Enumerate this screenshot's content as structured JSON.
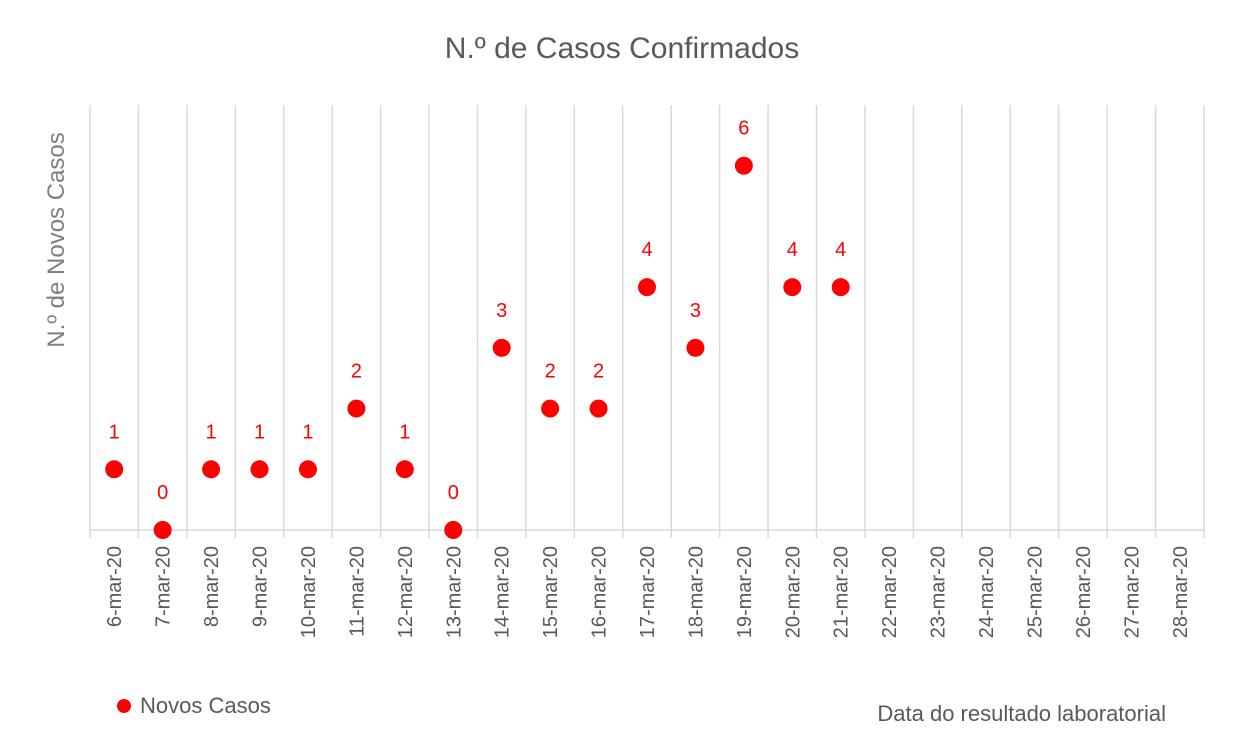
{
  "chart_data": {
    "type": "scatter",
    "title": "N.º de Casos Confirmados",
    "ylabel": "N.º de Novos Casos",
    "xlabel": "Data do resultado laboratorial",
    "categories": [
      "6-mar-20",
      "7-mar-20",
      "8-mar-20",
      "9-mar-20",
      "10-mar-20",
      "11-mar-20",
      "12-mar-20",
      "13-mar-20",
      "14-mar-20",
      "15-mar-20",
      "16-mar-20",
      "17-mar-20",
      "18-mar-20",
      "19-mar-20",
      "20-mar-20",
      "21-mar-20",
      "22-mar-20",
      "23-mar-20",
      "24-mar-20",
      "25-mar-20",
      "26-mar-20",
      "27-mar-20",
      "28-mar-20"
    ],
    "series": [
      {
        "name": "Novos Casos",
        "color": "#ff0000",
        "values": [
          1,
          0,
          1,
          1,
          1,
          2,
          1,
          0,
          3,
          2,
          2,
          4,
          3,
          6,
          4,
          4,
          null,
          null,
          null,
          null,
          null,
          null,
          null
        ]
      }
    ],
    "ylim": [
      0,
      7
    ],
    "grid": true,
    "legend": "bottom-left",
    "data_labels": true
  }
}
